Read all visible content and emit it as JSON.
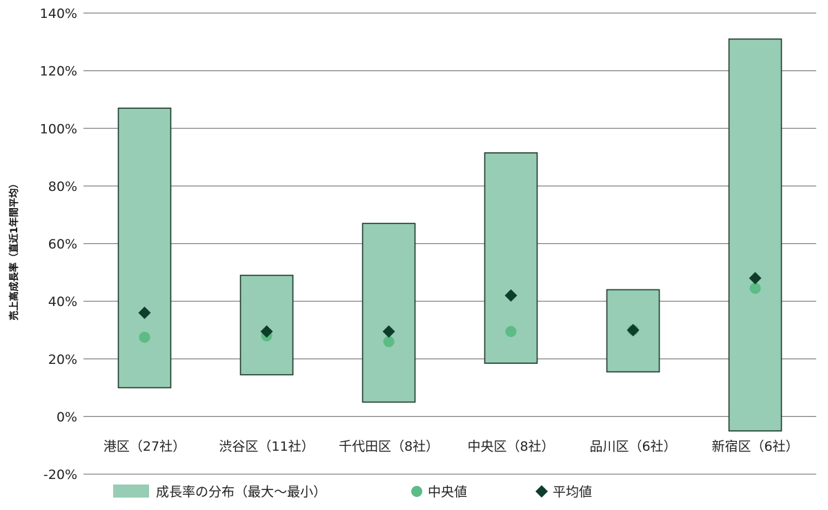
{
  "chart_data": {
    "type": "range-bar",
    "ylabel": "売上高成長率（直近1年間平均）",
    "ylim": [
      -20,
      140
    ],
    "yticks": [
      -20,
      0,
      20,
      40,
      60,
      80,
      100,
      120,
      140
    ],
    "ytick_labels": [
      "-20%",
      "0%",
      "20%",
      "40%",
      "60%",
      "80%",
      "100%",
      "120%",
      "140%"
    ],
    "grid": true,
    "legend_position": "bottom",
    "categories": [
      "港区（27社）",
      "渋谷区（11社）",
      "千代田区（8社）",
      "中央区（8社）",
      "品川区（6社）",
      "新宿区（6社）"
    ],
    "series": [
      {
        "name": "成長率の分布（最大〜最小）",
        "kind": "range",
        "min": [
          10,
          14.5,
          5,
          18.5,
          15.5,
          -5
        ],
        "max": [
          107,
          49,
          67,
          91.5,
          44,
          131
        ]
      },
      {
        "name": "中央値",
        "kind": "circle",
        "values": [
          27.5,
          28,
          26,
          29.5,
          30,
          44.5
        ]
      },
      {
        "name": "平均値",
        "kind": "diamond",
        "values": [
          36,
          29.5,
          29.5,
          42,
          30,
          48
        ]
      }
    ],
    "colors": {
      "range_fill": "#97cdb4",
      "range_stroke": "#1e3a2e",
      "median": "#5dbb85",
      "mean": "#0f3d2c",
      "grid": "#808080"
    }
  }
}
